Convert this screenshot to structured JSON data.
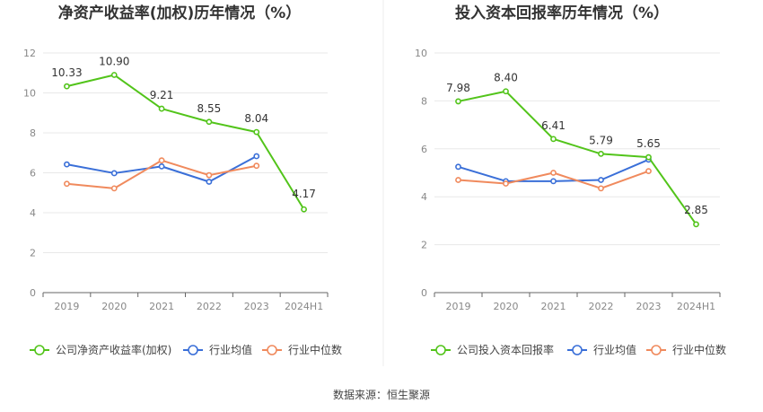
{
  "source_label": "数据来源：恒生聚源",
  "colors": {
    "company": "#52c41a",
    "average": "#3a6fd8",
    "median": "#f08a5d",
    "grid": "#e8e8e8",
    "axis": "#666666"
  },
  "chart_data": [
    {
      "type": "line",
      "title": "净资产收益率(加权)历年情况（%）",
      "categories": [
        "2019",
        "2020",
        "2021",
        "2022",
        "2023",
        "2024H1"
      ],
      "ylim": [
        0,
        12
      ],
      "yticks": [
        0,
        2,
        4,
        6,
        8,
        10,
        12
      ],
      "grid": true,
      "legend_position": "bottom-left",
      "series": [
        {
          "name": "公司净资产收益率(加权)",
          "key": "company",
          "values": [
            10.33,
            10.9,
            9.21,
            8.55,
            8.04,
            4.17
          ],
          "labels": [
            "10.33",
            "10.90",
            "9.21",
            "8.55",
            "8.04",
            "4.17"
          ]
        },
        {
          "name": "行业均值",
          "key": "average",
          "values": [
            6.42,
            5.98,
            6.32,
            5.55,
            6.83,
            null
          ]
        },
        {
          "name": "行业中位数",
          "key": "median",
          "values": [
            5.45,
            5.22,
            6.62,
            5.88,
            6.35,
            null
          ]
        }
      ]
    },
    {
      "type": "line",
      "title": "投入资本回报率历年情况（%）",
      "categories": [
        "2019",
        "2020",
        "2021",
        "2022",
        "2023",
        "2024H1"
      ],
      "ylim": [
        0,
        10
      ],
      "yticks": [
        0,
        2,
        4,
        6,
        8,
        10
      ],
      "grid": true,
      "legend_position": "bottom-left",
      "series": [
        {
          "name": "公司投入资本回报率",
          "key": "company",
          "values": [
            7.98,
            8.4,
            6.41,
            5.79,
            5.65,
            2.85
          ],
          "labels": [
            "7.98",
            "8.40",
            "6.41",
            "5.79",
            "5.65",
            "2.85"
          ]
        },
        {
          "name": "行业均值",
          "key": "average",
          "values": [
            5.25,
            4.65,
            4.65,
            4.7,
            5.55,
            null
          ]
        },
        {
          "name": "行业中位数",
          "key": "median",
          "values": [
            4.7,
            4.55,
            5.0,
            4.35,
            5.07,
            null
          ]
        }
      ]
    }
  ]
}
